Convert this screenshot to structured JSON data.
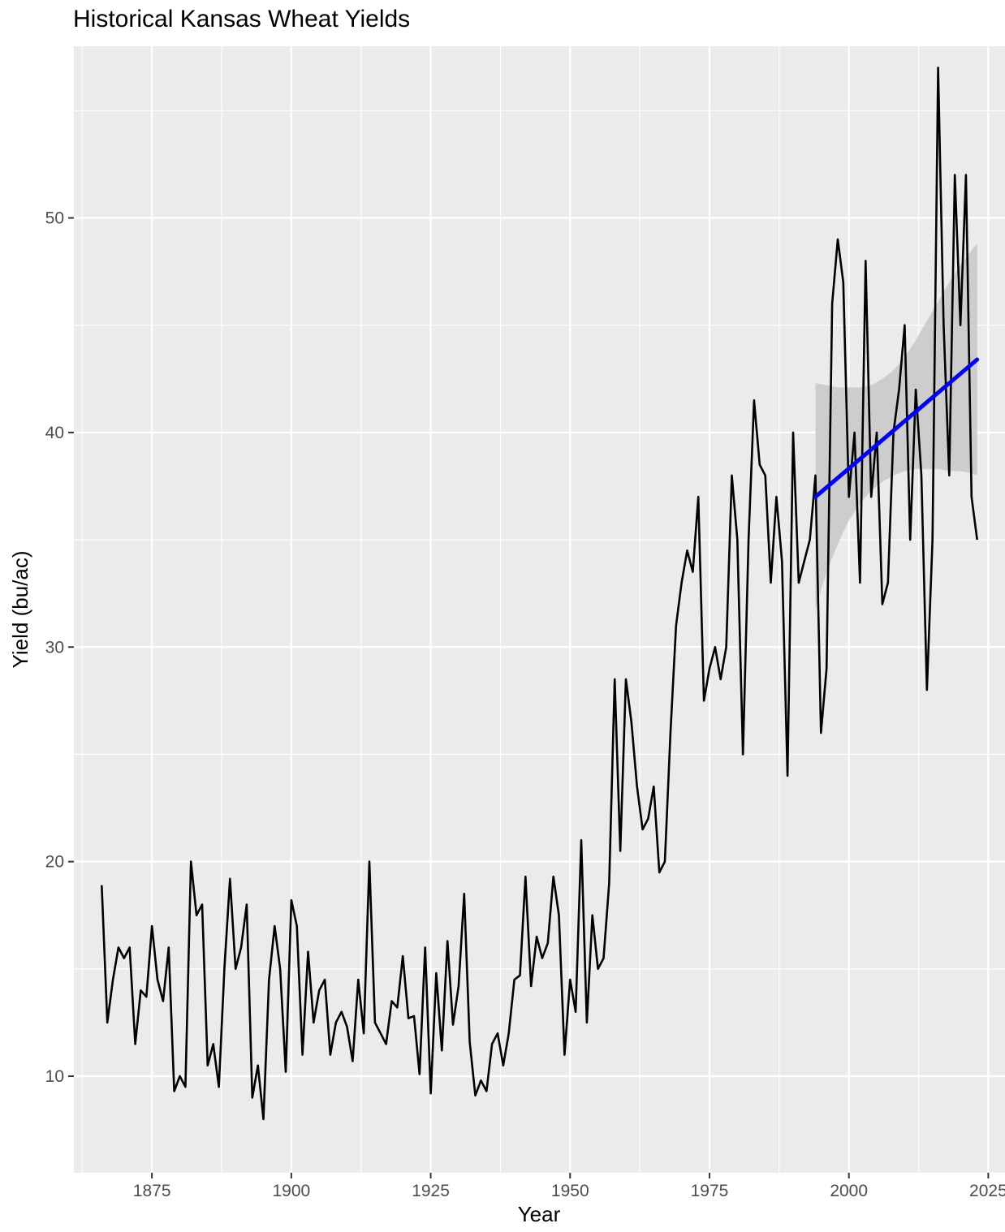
{
  "chart_data": {
    "type": "line",
    "title": "Historical Kansas Wheat Yields",
    "xlabel": "Year",
    "ylabel": "Yield (bu/ac)",
    "xlim": [
      1861,
      2028
    ],
    "ylim": [
      5.5,
      58
    ],
    "x_ticks": [
      1875,
      1900,
      1925,
      1950,
      1975,
      2000,
      2025
    ],
    "y_ticks": [
      10,
      20,
      30,
      40,
      50
    ],
    "grid": true,
    "legend": "none",
    "colors": {
      "panel": "#ebebeb",
      "grid": "#ffffff",
      "series": "#000000",
      "trend": "#0000ff",
      "ribbon": "#c8c8c8",
      "tick": "#333333",
      "tick_text": "#4d4d4d"
    },
    "series": [
      {
        "x": [
          1866,
          1867,
          1868,
          1869,
          1870,
          1871,
          1872,
          1873,
          1874,
          1875,
          1876,
          1877,
          1878,
          1879,
          1880,
          1881,
          1882,
          1883,
          1884,
          1885,
          1886,
          1887,
          1888,
          1889,
          1890,
          1891,
          1892,
          1893,
          1894,
          1895,
          1896,
          1897,
          1898,
          1899,
          1900,
          1901,
          1902,
          1903,
          1904,
          1905,
          1906,
          1907,
          1908,
          1909,
          1910,
          1911,
          1912,
          1913,
          1914,
          1915,
          1916,
          1917,
          1918,
          1919,
          1920,
          1921,
          1922,
          1923,
          1924,
          1925,
          1926,
          1927,
          1928,
          1929,
          1930,
          1931,
          1932,
          1933,
          1934,
          1935,
          1936,
          1937,
          1938,
          1939,
          1940,
          1941,
          1942,
          1943,
          1944,
          1945,
          1946,
          1947,
          1948,
          1949,
          1950,
          1951,
          1952,
          1953,
          1954,
          1955,
          1956,
          1957,
          1958,
          1959,
          1960,
          1961,
          1962,
          1963,
          1964,
          1965,
          1966,
          1967,
          1968,
          1969,
          1970,
          1971,
          1972,
          1973,
          1974,
          1975,
          1976,
          1977,
          1978,
          1979,
          1980,
          1981,
          1982,
          1983,
          1984,
          1985,
          1986,
          1987,
          1988,
          1989,
          1990,
          1991,
          1992,
          1993,
          1994,
          1995,
          1996,
          1997,
          1998,
          1999,
          2000,
          2001,
          2002,
          2003,
          2004,
          2005,
          2006,
          2007,
          2008,
          2009,
          2010,
          2011,
          2012,
          2013,
          2014,
          2015,
          2016,
          2017,
          2018,
          2019,
          2020,
          2021,
          2022,
          2023
        ],
        "y": [
          18.9,
          12.5,
          14.5,
          16.0,
          15.5,
          16.0,
          11.5,
          14.0,
          13.7,
          17.0,
          14.5,
          13.5,
          16.0,
          9.3,
          10.0,
          9.5,
          20.0,
          17.5,
          18.0,
          10.5,
          11.5,
          9.5,
          15.0,
          19.2,
          15.0,
          16.0,
          18.0,
          9.0,
          10.5,
          8.0,
          14.5,
          17.0,
          15.0,
          10.2,
          18.2,
          17.0,
          11.0,
          15.8,
          12.5,
          14.0,
          14.5,
          11.0,
          12.5,
          13.0,
          12.3,
          10.7,
          14.5,
          12.0,
          20.0,
          12.5,
          12.0,
          11.5,
          13.5,
          13.2,
          15.6,
          12.7,
          12.8,
          10.1,
          16.0,
          9.2,
          14.8,
          11.2,
          16.3,
          12.4,
          14.2,
          18.5,
          11.6,
          9.1,
          9.8,
          9.3,
          11.5,
          12.0,
          10.5,
          12.0,
          14.5,
          14.7,
          19.3,
          14.2,
          16.5,
          15.5,
          16.2,
          19.3,
          17.5,
          11.0,
          14.5,
          13.0,
          21.0,
          12.5,
          17.5,
          15.0,
          15.5,
          19.0,
          28.5,
          20.5,
          28.5,
          26.5,
          23.5,
          21.5,
          22.0,
          23.5,
          19.5,
          20.0,
          26.0,
          31.0,
          33.0,
          34.5,
          33.5,
          37.0,
          27.5,
          29.0,
          30.0,
          28.5,
          30.0,
          38.0,
          35.0,
          25.0,
          35.0,
          41.5,
          38.5,
          38.0,
          33.0,
          37.0,
          34.0,
          24.0,
          40.0,
          33.0,
          34.0,
          35.0,
          38.0,
          26.0,
          29.0,
          46.0,
          49.0,
          47.0,
          37.0,
          40.0,
          33.0,
          48.0,
          37.0,
          40.0,
          32.0,
          33.0,
          40.0,
          42.0,
          45.0,
          35.0,
          42.0,
          38.0,
          28.0,
          35.0,
          57.0,
          45.0,
          38.0,
          52.0,
          45.0,
          52.0,
          37.0,
          35.0
        ]
      }
    ],
    "trend": {
      "method": "linear fit",
      "x": [
        1994,
        2023
      ],
      "y": [
        37.0,
        43.4
      ],
      "band": {
        "x": [
          1994,
          1996,
          1998,
          2000,
          2002,
          2004,
          2006,
          2008,
          2010,
          2012,
          2014,
          2016,
          2018,
          2020,
          2022,
          2023
        ],
        "lower": [
          31.8,
          33.5,
          34.8,
          35.9,
          36.7,
          37.3,
          37.7,
          38.0,
          38.2,
          38.3,
          38.3,
          38.3,
          38.2,
          38.2,
          38.1,
          38.0
        ],
        "upper": [
          42.3,
          42.2,
          42.1,
          42.1,
          42.1,
          42.2,
          42.5,
          42.9,
          43.5,
          44.3,
          45.2,
          46.1,
          47.0,
          47.8,
          48.5,
          48.8
        ]
      }
    }
  }
}
